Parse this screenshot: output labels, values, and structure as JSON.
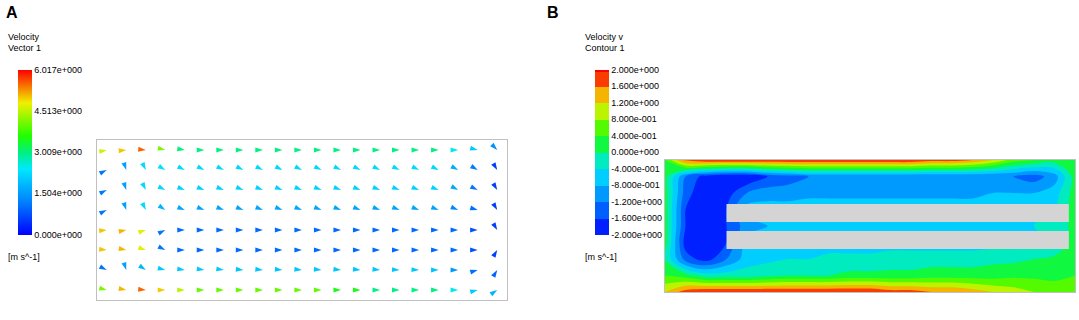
{
  "chart_data": [
    {
      "type": "vector_field",
      "label": "A",
      "colorbar": {
        "title": [
          "Velocity",
          "Vector 1"
        ],
        "unit": "[m s^-1]",
        "range": [
          0,
          6.017
        ],
        "ticks": [
          {
            "value": 0,
            "label": "0.000e+000"
          },
          {
            "value": 1.504,
            "label": "1.504e+000"
          },
          {
            "value": 3.009,
            "label": "3.009e+000"
          },
          {
            "value": 4.513,
            "label": "4.513e+000"
          },
          {
            "value": 6.017,
            "label": "6.017e+000"
          }
        ]
      },
      "x": [
        0,
        1,
        2,
        3,
        4,
        5,
        6,
        7,
        8,
        9,
        10,
        11,
        12,
        13,
        14,
        15,
        16,
        17,
        18,
        19,
        20
      ],
      "y": [
        0.5,
        1.5,
        2.5,
        3.5,
        4.5,
        5.5,
        6.5,
        7.5
      ],
      "u": [
        [
          4,
          5,
          5.5,
          5,
          4.5,
          4,
          4,
          4,
          4,
          4,
          4,
          4,
          3.5,
          3.5,
          3,
          3,
          3,
          3,
          2.5,
          2,
          1.5
        ],
        [
          1,
          0.5,
          1.5,
          2,
          2,
          2,
          2,
          2,
          2,
          2,
          2,
          2,
          2,
          2,
          2,
          2,
          2,
          2,
          1.5,
          1,
          0.5
        ],
        [
          5,
          5,
          4.5,
          1,
          1,
          1,
          1,
          1,
          1,
          1,
          1,
          1,
          1,
          1,
          1,
          1,
          1,
          1,
          1,
          0.8,
          0.3
        ],
        [
          5,
          5,
          4.5,
          1,
          1,
          1,
          1,
          1,
          1,
          1,
          1,
          1,
          1,
          1,
          1,
          1,
          1,
          1,
          1,
          0.8,
          0.3
        ],
        [
          1,
          0.5,
          1,
          1.5,
          1.5,
          1.5,
          1.5,
          1.5,
          1.5,
          1.5,
          1.5,
          1.5,
          1.5,
          1.5,
          1.5,
          1.5,
          1.5,
          1.5,
          1.2,
          1,
          0.3
        ],
        [
          1,
          0.5,
          1,
          2,
          2,
          2,
          2,
          2,
          2,
          2,
          2,
          2,
          2,
          2,
          2,
          2,
          2,
          2,
          1.5,
          1,
          0.3
        ],
        [
          1,
          0.5,
          1,
          2,
          2,
          2,
          2,
          2,
          2,
          2,
          2,
          2,
          2,
          2,
          2,
          2,
          2,
          2,
          1.5,
          1,
          0.3
        ],
        [
          4.5,
          5,
          5.5,
          4,
          3,
          3,
          3,
          3,
          3,
          3,
          3,
          3,
          3,
          3,
          3,
          3,
          3,
          3,
          2.5,
          2,
          1
        ]
      ],
      "v": [
        [
          -1,
          -1,
          -0.5,
          0,
          0,
          0,
          0,
          0,
          0,
          0,
          0,
          0,
          0,
          0,
          0,
          0,
          0,
          0,
          0,
          0.5,
          1
        ],
        [
          -0.5,
          -1.5,
          -1,
          -0.5,
          -0.3,
          -0.3,
          -0.3,
          -0.2,
          -0.2,
          -0.2,
          -0.2,
          -0.2,
          -0.2,
          -0.2,
          -0.2,
          -0.1,
          -0.1,
          0,
          0,
          0.3,
          0.8
        ],
        [
          -0.5,
          -1,
          -1.5,
          -0.5,
          0,
          0,
          0,
          0,
          0,
          0,
          0,
          0,
          0,
          0,
          0,
          0,
          0,
          0,
          0,
          0,
          0.5
        ],
        [
          0.5,
          1,
          1.5,
          0.5,
          0,
          0,
          0,
          0,
          0,
          0,
          0,
          0,
          0,
          0,
          0,
          0,
          0,
          0,
          0,
          0,
          -0.5
        ],
        [
          0.5,
          -1.5,
          -2,
          -1,
          -0.6,
          -0.6,
          -0.6,
          -0.6,
          -0.6,
          -0.6,
          -0.6,
          -0.6,
          -0.6,
          -0.6,
          -0.6,
          -0.6,
          -0.6,
          -0.6,
          -0.5,
          -0.3,
          -0.5
        ],
        [
          0.5,
          -1.5,
          -2,
          -1,
          -0.8,
          -0.8,
          -0.8,
          -0.8,
          -0.8,
          -0.8,
          -0.8,
          -0.8,
          -0.8,
          -0.8,
          -0.8,
          -0.8,
          -0.8,
          -0.8,
          -0.8,
          -0.5,
          -0.5
        ],
        [
          0.5,
          -1.5,
          -2,
          -1.2,
          -1,
          -1,
          -1,
          -1,
          -1,
          -1,
          -1,
          -1,
          -1,
          -1,
          -1,
          -1,
          -1,
          -1,
          -0.8,
          -0.6,
          -0.5
        ],
        [
          1,
          0.5,
          -0.5,
          -1,
          -0.5,
          0,
          0,
          0,
          0,
          0,
          0,
          0,
          0,
          0,
          0,
          0,
          0,
          0,
          0,
          -0.5,
          -1
        ]
      ],
      "xlim": [
        -0.5,
        20.5
      ],
      "ylim": [
        0,
        8
      ],
      "tick_labels": false
    },
    {
      "type": "contour",
      "label": "B",
      "colorbar": {
        "title": [
          "Velocity v",
          "Contour 1"
        ],
        "unit": "[m s^-1]",
        "range": [
          -2,
          2
        ],
        "ticks": [
          {
            "value": 2,
            "label": "2.000e+000"
          },
          {
            "value": 1.6,
            "label": "1.600e+000"
          },
          {
            "value": 1.2,
            "label": "1.200e+000"
          },
          {
            "value": 0.8,
            "label": "8.000e-001"
          },
          {
            "value": 0.4,
            "label": "4.000e-001"
          },
          {
            "value": 0,
            "label": "0.000e+000"
          },
          {
            "value": -0.4,
            "label": "-4.000e-001"
          },
          {
            "value": -0.8,
            "label": "-8.000e-001"
          },
          {
            "value": -1.2,
            "label": "-1.200e+000"
          },
          {
            "value": -1.6,
            "label": "-1.600e+000"
          },
          {
            "value": -2,
            "label": "-2.000e+000"
          }
        ]
      },
      "x": [
        0,
        1,
        2,
        3,
        4,
        5,
        6,
        7,
        8,
        9,
        10,
        11,
        12,
        13,
        14,
        15,
        16,
        17,
        18,
        19,
        20
      ],
      "y": [
        0,
        1,
        2,
        3,
        4,
        5,
        6,
        7,
        8
      ],
      "z": [
        [
          1.2,
          1.8,
          2,
          2,
          2,
          2,
          2,
          2,
          2,
          2,
          2,
          1.8,
          1.8,
          1.6,
          1.6,
          1.4,
          1.2,
          1,
          0.8,
          0.6,
          0.4
        ],
        [
          0.4,
          0.2,
          -0.2,
          -0.2,
          -0.2,
          -0.1,
          0,
          0,
          0,
          0.1,
          0.1,
          0.1,
          0.1,
          0.2,
          0.2,
          0.2,
          0.2,
          0.3,
          0.3,
          0.3,
          0.4
        ],
        [
          0,
          -1.4,
          -1.8,
          -1.2,
          -0.6,
          -0.5,
          -0.4,
          -0.4,
          -0.3,
          -0.3,
          -0.3,
          -0.2,
          -0.2,
          -0.2,
          -0.2,
          -0.2,
          -0.1,
          -0.1,
          0,
          0.1,
          0.2
        ],
        [
          0.2,
          -1.8,
          -2,
          -1.6,
          -0.6,
          -0.6,
          -0.6,
          -0.6,
          -0.6,
          -0.6,
          -0.6,
          -0.6,
          -0.6,
          -0.6,
          -0.6,
          -0.6,
          -0.6,
          -0.6,
          -0.5,
          -0.4,
          0.2
        ],
        [
          0.2,
          -1.6,
          -2,
          -1.6,
          -1,
          -0.8,
          -0.8,
          -0.8,
          -0.8,
          -0.8,
          -0.8,
          -0.8,
          -0.8,
          -0.8,
          -0.6,
          -0.6,
          -0.6,
          -0.6,
          -0.4,
          -0.4,
          0.2
        ],
        [
          0.2,
          -1.6,
          -2,
          -1.6,
          -0.6,
          -0.6,
          -0.6,
          -0.6,
          -0.6,
          -0.6,
          -0.6,
          -0.6,
          -0.6,
          -0.6,
          -0.6,
          -0.6,
          -0.6,
          -0.6,
          -0.5,
          -0.4,
          0.2
        ],
        [
          0.2,
          -1.4,
          -2,
          -1.8,
          -1.2,
          -1,
          -1,
          -0.9,
          -0.9,
          -0.9,
          -0.9,
          -0.9,
          -0.9,
          -0.9,
          -0.9,
          -0.9,
          -0.8,
          -0.8,
          -0.8,
          -0.6,
          0.2
        ],
        [
          0.2,
          -1.2,
          -1.8,
          -2,
          -2,
          -1.6,
          -1.4,
          -1.2,
          -1.2,
          -1.2,
          -1.2,
          -1.2,
          -1.2,
          -1.2,
          -1.2,
          -1.2,
          -1.2,
          -1.2,
          -1.4,
          -1,
          0.2
        ],
        [
          0.4,
          1.8,
          2,
          2,
          2,
          2,
          2,
          2,
          2,
          2,
          2,
          2,
          2,
          1.8,
          1.8,
          1.6,
          1.2,
          0.6,
          0.4,
          0.2,
          0.2
        ]
      ],
      "obstacles": [
        {
          "x": [
            3,
            19.7
          ],
          "y": [
            4.24,
            5.33
          ]
        },
        {
          "x": [
            3,
            19.7
          ],
          "y": [
            2.6,
            3.7
          ]
        }
      ],
      "xlim": [
        0,
        20
      ],
      "ylim": [
        0,
        8
      ],
      "tick_labels": false
    }
  ]
}
